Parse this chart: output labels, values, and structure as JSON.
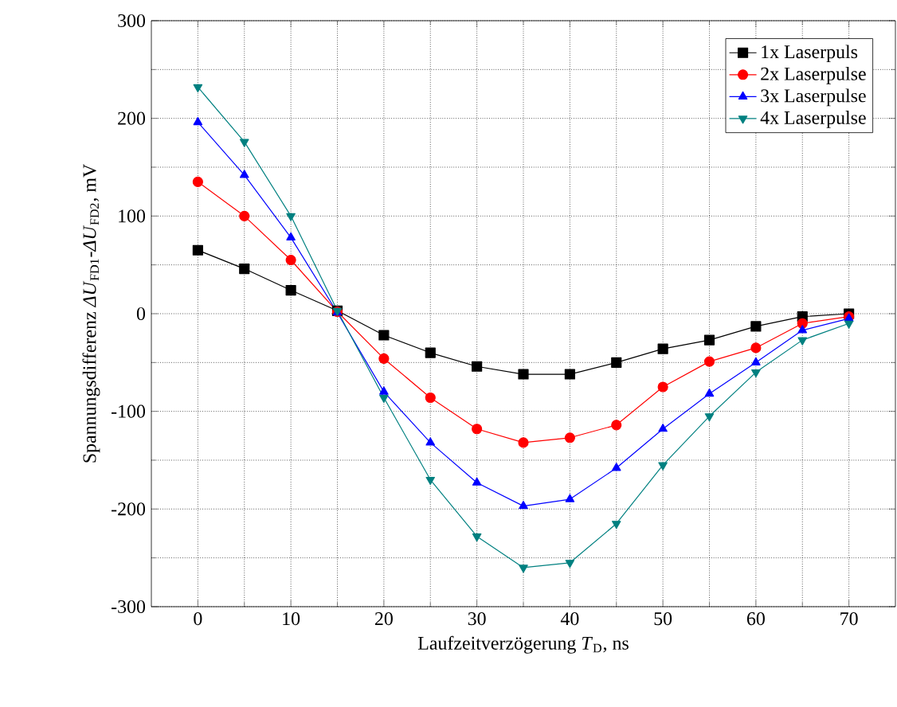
{
  "chart_data": {
    "type": "line",
    "xlabel": "Laufzeitverzögerung *T*$_{D}$, ns",
    "ylabel": "Spannungsdifferenz *ΔU*$_{FD1}$-*ΔU*$_{FD2}$, mV",
    "x": [
      0,
      5,
      10,
      15,
      20,
      25,
      30,
      35,
      40,
      45,
      50,
      55,
      60,
      65,
      70
    ],
    "series": [
      {
        "name": "1x Laserpuls",
        "color": "#000000",
        "marker": "square",
        "values": [
          65,
          46,
          24,
          3,
          -22,
          -40,
          -54,
          -62,
          -62,
          -50,
          -36,
          -27,
          -13,
          -3,
          0
        ]
      },
      {
        "name": "2x Laserpulse",
        "color": "#ff0000",
        "marker": "circle",
        "values": [
          135,
          100,
          55,
          2,
          -46,
          -86,
          -118,
          -132,
          -127,
          -114,
          -75,
          -49,
          -35,
          -10,
          -3
        ]
      },
      {
        "name": "3x Laserpulse",
        "color": "#0000ff",
        "marker": "triangle",
        "values": [
          196,
          142,
          78,
          1,
          -80,
          -132,
          -173,
          -197,
          -190,
          -158,
          -118,
          -82,
          -50,
          -17,
          -5
        ]
      },
      {
        "name": "4x Laserpulse",
        "color": "#008080",
        "marker": "triangle-down",
        "values": [
          232,
          176,
          100,
          3,
          -86,
          -170,
          -228,
          -260,
          -255,
          -215,
          -155,
          -105,
          -60,
          -27,
          -10
        ]
      }
    ],
    "xlim": [
      -5,
      75
    ],
    "ylim": [
      -300,
      300
    ],
    "xticks": [
      0,
      10,
      20,
      30,
      40,
      50,
      60,
      70
    ],
    "yticks": [
      -300,
      -200,
      -100,
      0,
      100,
      200,
      300
    ],
    "grid": true,
    "legend": "top right",
    "line_style": "solid"
  }
}
